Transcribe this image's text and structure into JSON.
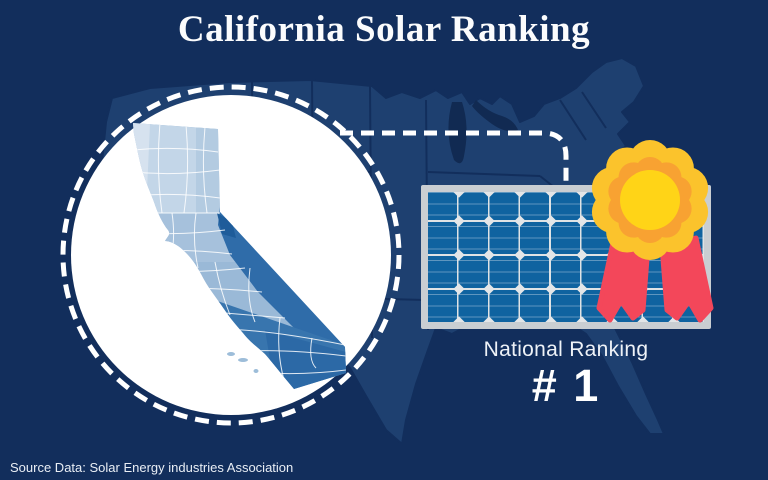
{
  "header": {
    "title": "California Solar Ranking"
  },
  "ranking": {
    "label": "National Ranking",
    "value": "# 1"
  },
  "footer": {
    "source": "Source Data: Solar Energy industries Association"
  },
  "graphics": {
    "us_map_icon": "usa-silhouette-background",
    "california_map_icon": "california-county-choropleth",
    "solar_panel_icon": "solar-panel",
    "award_icon": "first-place-rosette-ribbon",
    "connector_icon": "dashed-connector-line"
  },
  "colors": {
    "background": "#122e5c",
    "us_map_fill": "#1e4070",
    "circle_fill": "#ffffff",
    "panel_frame": "#c9ced2",
    "panel_cell_blue": "#0f63a0",
    "rosette_outer_gold": "#fbc32c",
    "rosette_inner_orange": "#f8a232",
    "rosette_center_yellow": "#ffd417",
    "ribbon_red": "#f3475a",
    "california_light_blue": "#c3d6e8",
    "california_mid_blue": "#9ab9d7",
    "california_dark_blue": "#2f6ca9",
    "text_white": "#ffffff"
  }
}
